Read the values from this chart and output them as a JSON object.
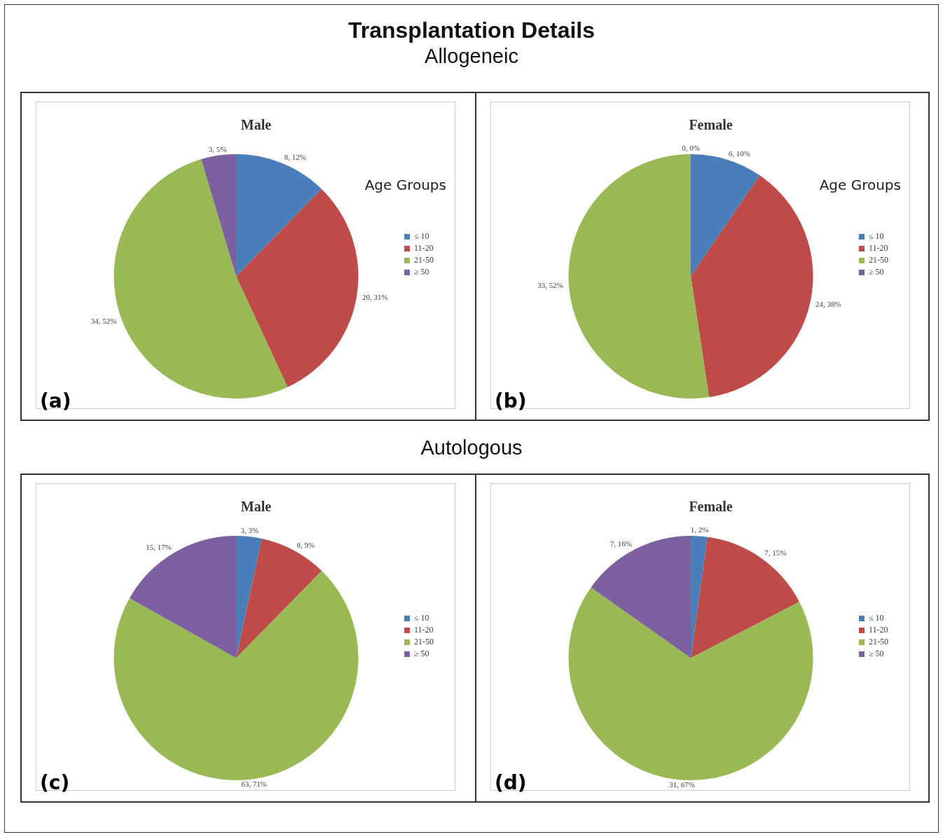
{
  "chart_data": [
    {
      "type": "pie",
      "title": "Male",
      "legend_title": "Age Groups",
      "legend": "right",
      "categories": [
        "≤ 10",
        "11-20",
        "21-50",
        "≥ 50"
      ],
      "values": [
        8,
        20,
        34,
        3
      ],
      "colors": [
        "#4a7ebb",
        "#be4b48",
        "#98b954",
        "#7d60a0"
      ],
      "value_labels": [
        "8, 12%",
        "20, 31%",
        "34, 52%",
        "3, 5%"
      ],
      "annotations": [
        "Transplantation Details",
        "Allogeneic",
        "(a)"
      ]
    },
    {
      "type": "pie",
      "title": "Female",
      "legend_title": "Age Groups",
      "legend": "right",
      "categories": [
        "≤ 10",
        "11-20",
        "21-50",
        "≥ 50"
      ],
      "values": [
        6,
        24,
        33,
        0
      ],
      "colors": [
        "#4a7ebb",
        "#be4b48",
        "#98b954",
        "#7d60a0"
      ],
      "value_labels": [
        "6, 10%",
        "24, 38%",
        "33, 52%",
        "0, 0%"
      ],
      "annotations": [
        "(b)"
      ]
    },
    {
      "type": "pie",
      "title": "Male",
      "legend": "right",
      "categories": [
        "≤ 10",
        "11-20",
        "21-50",
        "≥ 50"
      ],
      "values": [
        3,
        8,
        63,
        15
      ],
      "colors": [
        "#4a7ebb",
        "#be4b48",
        "#98b954",
        "#7d60a0"
      ],
      "value_labels": [
        "3, 3%",
        "8, 9%",
        "63, 71%",
        "15, 17%"
      ],
      "annotations": [
        "Autologous",
        "(c)"
      ]
    },
    {
      "type": "pie",
      "title": "Female",
      "legend": "right",
      "categories": [
        "≤ 10",
        "11-20",
        "21-50",
        "≥ 50"
      ],
      "values": [
        1,
        7,
        31,
        7
      ],
      "colors": [
        "#4a7ebb",
        "#be4b48",
        "#98b954",
        "#7d60a0"
      ],
      "value_labels": [
        "1, 2%",
        "7, 15%",
        "31, 67%",
        "7, 16%"
      ],
      "annotations": [
        "(d)"
      ]
    }
  ]
}
